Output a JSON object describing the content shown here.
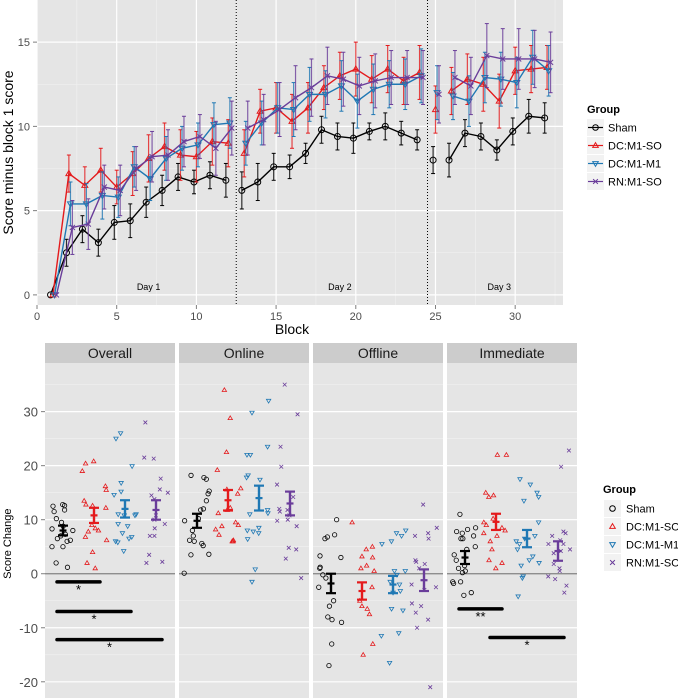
{
  "colors": {
    "Sham": "#000000",
    "DC:M1-SO": "#e41a1c",
    "DC:M1-M1": "#1f78b4",
    "RN:M1-SO": "#6a3d9a",
    "panel": "#e5e5e5",
    "strip": "#cccccc",
    "grid": "#ffffff"
  },
  "chart_data": [
    {
      "type": "line",
      "title": "",
      "xlabel": "Block",
      "ylabel": "Score minus block 1 score",
      "xlim": [
        0,
        33
      ],
      "ylim": [
        -0.6,
        17.5
      ],
      "xticks": [
        0,
        5,
        10,
        15,
        20,
        25,
        30
      ],
      "yticks": [
        0,
        5,
        10,
        15
      ],
      "grid": true,
      "legend": {
        "title": "Group",
        "position": "right",
        "entries": [
          "Sham",
          "DC:M1-SO",
          "DC:M1-M1",
          "RN:M1-SO"
        ]
      },
      "day_separators": [
        12.5,
        24.5
      ],
      "annotations": [
        {
          "text": "Day 1",
          "x": 7
        },
        {
          "text": "Day 2",
          "x": 19
        },
        {
          "text": "Day 3",
          "x": 29
        }
      ],
      "series": [
        {
          "name": "Sham",
          "marker": "circle",
          "x": [
            1,
            2,
            3,
            4,
            5,
            6,
            7,
            8,
            9,
            10,
            11,
            12,
            13,
            14,
            15,
            16,
            17,
            18,
            19,
            20,
            21,
            22,
            23,
            24,
            25,
            26,
            27,
            28,
            29,
            30,
            31,
            32
          ],
          "y": [
            0,
            2.5,
            3.9,
            3.1,
            4.3,
            4.4,
            5.5,
            6.2,
            7.0,
            6.7,
            7.1,
            6.8,
            6.2,
            6.7,
            7.6,
            7.6,
            8.4,
            9.8,
            9.4,
            9.3,
            9.7,
            10.0,
            9.6,
            9.2,
            8.0,
            8.0,
            9.6,
            9.4,
            8.6,
            9.7,
            10.6,
            10.5
          ],
          "err": [
            0,
            0.8,
            0.8,
            0.8,
            1.0,
            1.0,
            0.9,
            0.9,
            0.8,
            0.7,
            0.8,
            1.0,
            1.1,
            1.1,
            0.8,
            0.7,
            0.6,
            0.8,
            0.8,
            0.9,
            0.5,
            0.8,
            0.7,
            0.6,
            0.8,
            1.0,
            0.8,
            0.8,
            0.6,
            0.8,
            1.0,
            0.9
          ],
          "breaks_after": [
            12,
            24,
            25
          ]
        },
        {
          "name": "DC:M1-SO",
          "marker": "triangle-up",
          "x": [
            1,
            2,
            3,
            4,
            5,
            6,
            7,
            8,
            9,
            10,
            11,
            12,
            13,
            14,
            15,
            16,
            17,
            18,
            19,
            20,
            21,
            22,
            23,
            24,
            25,
            26,
            27,
            28,
            29,
            30,
            31,
            32
          ],
          "y": [
            0,
            7.2,
            6.5,
            7.4,
            6.4,
            7.2,
            8.1,
            8.8,
            8.3,
            8.2,
            9.1,
            9.0,
            8.4,
            10.9,
            11.1,
            10.3,
            11.1,
            12.3,
            13.0,
            13.4,
            12.8,
            13.4,
            12.7,
            13.2,
            11.0,
            12.1,
            12.8,
            12.5,
            11.5,
            13.3,
            13.4,
            13.5
          ],
          "err": [
            0,
            1.1,
            1.1,
            1.3,
            1.0,
            1.3,
            1.4,
            1.4,
            1.5,
            1.5,
            1.4,
            1.4,
            1.4,
            1.3,
            1.5,
            1.6,
            1.5,
            1.3,
            1.4,
            1.6,
            1.4,
            1.4,
            1.4,
            1.6,
            1.4,
            1.4,
            1.5,
            1.6,
            1.6,
            1.4,
            1.4,
            1.3
          ],
          "breaks_after": [
            12,
            24,
            25
          ]
        },
        {
          "name": "DC:M1-M1",
          "marker": "triangle-down",
          "x": [
            1,
            2,
            3,
            4,
            5,
            6,
            7,
            8,
            9,
            10,
            11,
            12,
            13,
            14,
            15,
            16,
            17,
            18,
            19,
            20,
            21,
            22,
            23,
            24,
            25,
            26,
            27,
            28,
            29,
            30,
            31,
            32
          ],
          "y": [
            0,
            5.4,
            5.4,
            5.9,
            5.8,
            7.6,
            6.9,
            8.1,
            8.7,
            8.9,
            10.1,
            10.2,
            9.0,
            10.2,
            11.1,
            11.0,
            11.9,
            11.9,
            12.4,
            11.5,
            12.2,
            12.5,
            12.5,
            13.0,
            12.0,
            11.8,
            11.5,
            12.9,
            12.8,
            12.6,
            14.1,
            13.3
          ],
          "err": [
            0,
            1.3,
            1.2,
            1.4,
            1.2,
            1.2,
            1.3,
            1.3,
            1.3,
            1.3,
            1.3,
            1.5,
            1.3,
            1.3,
            1.5,
            1.6,
            1.6,
            1.4,
            1.5,
            1.6,
            1.5,
            1.4,
            1.5,
            1.6,
            1.6,
            1.4,
            1.5,
            1.5,
            1.6,
            1.5,
            1.6,
            1.5
          ],
          "breaks_after": [
            12,
            24,
            25
          ]
        },
        {
          "name": "RN:M1-SO",
          "marker": "x",
          "x": [
            1,
            2,
            3,
            4,
            5,
            6,
            7,
            8,
            9,
            10,
            11,
            12,
            13,
            14,
            15,
            16,
            17,
            18,
            19,
            20,
            21,
            22,
            23,
            24,
            25,
            26,
            27,
            28,
            29,
            30,
            31,
            32
          ],
          "y": [
            0,
            4.0,
            4.2,
            6.4,
            6.2,
            7.5,
            8.2,
            8.3,
            9.1,
            9.4,
            8.7,
            9.9,
            9.9,
            10.4,
            11.0,
            11.7,
            12.3,
            13.0,
            12.8,
            12.4,
            12.7,
            12.9,
            12.9,
            12.9,
            11.9,
            12.9,
            12.4,
            14.2,
            14.0,
            14.0,
            14.0,
            13.8
          ],
          "err": [
            0,
            1.6,
            1.5,
            1.3,
            1.5,
            1.3,
            1.5,
            1.5,
            1.5,
            1.3,
            1.6,
            1.6,
            1.6,
            1.5,
            1.6,
            1.9,
            1.7,
            1.7,
            1.6,
            1.7,
            1.6,
            1.6,
            1.6,
            1.6,
            1.7,
            1.6,
            1.7,
            1.9,
            1.8,
            1.8,
            1.7,
            1.8
          ],
          "breaks_after": [
            12,
            24,
            25
          ]
        }
      ]
    },
    {
      "type": "scatter",
      "title": "",
      "xlabel": "",
      "ylabel": "Score Change",
      "ylim": [
        -23,
        39
      ],
      "yticks": [
        -20,
        -10,
        0,
        10,
        20,
        30
      ],
      "grid": true,
      "reference_line": 0,
      "legend": {
        "title": "Group",
        "position": "right",
        "entries": [
          "Sham",
          "DC:M1-SO",
          "DC:M1-M1",
          "RN:M1-SO"
        ]
      },
      "facets": [
        {
          "label": "Overall",
          "groups": [
            {
              "name": "Sham",
              "mean": 8.0,
              "se": 0.9,
              "points": [
                12.8,
                12.6,
                12.5,
                10.2,
                9.5,
                8.8,
                8.3,
                8.0,
                7.3,
                7.0,
                6.5,
                6.2,
                6.0,
                5.0,
                5.0,
                2.0,
                1.2,
                11.5,
                11.8
              ]
            },
            {
              "name": "DC:M1-SO",
              "mean": 10.8,
              "se": 1.4,
              "points": [
                20.8,
                20.4,
                19.0,
                16.2,
                15.5,
                13.5,
                12.6,
                12.2,
                12.8,
                9.0,
                8.4,
                8.0,
                7.8,
                6.8,
                6.2,
                4.0,
                2.0,
                1.0
              ]
            },
            {
              "name": "DC:M1-M1",
              "mean": 12.0,
              "se": 1.6,
              "points": [
                26.0,
                25.0,
                19.9,
                16.8,
                15.2,
                14.6,
                11.0,
                11.0,
                10.8,
                10.8,
                9.2,
                8.8,
                7.5,
                6.8,
                6.5,
                6.0,
                5.8,
                4.2
              ]
            },
            {
              "name": "RN:M1-SO",
              "mean": 11.8,
              "se": 1.8,
              "points": [
                28.0,
                21.5,
                21.3,
                17.6,
                15.6,
                15.0,
                14.5,
                13.8,
                10.8,
                10.0,
                9.2,
                8.4,
                7.0,
                7.0,
                3.5,
                2.2,
                2.0
              ]
            }
          ]
        },
        {
          "label": "Online",
          "groups": [
            {
              "name": "Sham",
              "mean": 9.8,
              "se": 1.3,
              "points": [
                18.2,
                17.8,
                17.5,
                15.3,
                14.8,
                13.5,
                12.0,
                11.8,
                10.2,
                9.8,
                8.0,
                7.0,
                6.2,
                6.0,
                5.6,
                5.2,
                3.5,
                3.6,
                0.1
              ]
            },
            {
              "name": "DC:M1-SO",
              "mean": 13.6,
              "se": 1.9,
              "points": [
                34.0,
                28.8,
                22.5,
                19.2,
                15.8,
                15.6,
                14.8,
                12.2,
                11.8,
                11.2,
                9.5,
                9.0,
                8.8,
                8.2,
                7.2,
                6.2,
                6.0,
                6.0
              ]
            },
            {
              "name": "DC:M1-M1",
              "mean": 14.0,
              "se": 2.3,
              "points": [
                32.0,
                29.8,
                23.5,
                22.0,
                22.0,
                18.2,
                17.8,
                17.4,
                11.8,
                11.2,
                11.0,
                8.5,
                8.0,
                7.8,
                7.5,
                6.4,
                0.8,
                -1.5
              ]
            },
            {
              "name": "RN:M1-SO",
              "mean": 13.0,
              "se": 2.2,
              "points": [
                35.0,
                29.5,
                23.5,
                19.8,
                16.5,
                14.2,
                12.0,
                11.8,
                11.5,
                10.8,
                10.0,
                9.8,
                8.8,
                4.8,
                4.5,
                2.8,
                -0.8
              ]
            }
          ]
        },
        {
          "label": "Offline",
          "groups": [
            {
              "name": "Sham",
              "mean": -1.8,
              "se": 1.8,
              "points": [
                10.0,
                7.2,
                6.5,
                6.8,
                3.3,
                3.0,
                1.2,
                1.0,
                -0.2,
                -0.8,
                -2.5,
                -5.0,
                -6.0,
                -8.0,
                -8.5,
                -9.0,
                -13.0,
                -17.0
              ]
            },
            {
              "name": "DC:M1-SO",
              "mean": -3.2,
              "se": 1.6,
              "points": [
                9.5,
                5.0,
                4.5,
                3.2,
                3.0,
                1.5,
                1.0,
                0.5,
                -2.5,
                -5.0,
                -6.0,
                -6.5,
                -7.5,
                -13.0,
                -15.0
              ]
            },
            {
              "name": "DC:M1-M1",
              "mean": -2.0,
              "se": 1.6,
              "points": [
                8.0,
                7.5,
                7.0,
                6.0,
                5.5,
                0.5,
                0.5,
                -0.2,
                -1.5,
                -2.0,
                -3.2,
                -3.5,
                -6.5,
                -6.8,
                -11.0,
                -11.5,
                -16.5
              ]
            },
            {
              "name": "RN:M1-SO",
              "mean": -1.2,
              "se": 2.0,
              "points": [
                12.8,
                8.5,
                7.5,
                7.0,
                6.5,
                2.5,
                2.2,
                1.8,
                1.0,
                -2.0,
                -2.5,
                -3.0,
                -5.5,
                -6.0,
                -7.2,
                -8.5,
                -10.0,
                -21.0
              ]
            }
          ]
        },
        {
          "label": "Immediate",
          "groups": [
            {
              "name": "Sham",
              "mean": 3.0,
              "se": 1.2,
              "points": [
                11.0,
                8.5,
                8.2,
                7.5,
                7.0,
                7.8,
                6.5,
                6.5,
                5.0,
                4.5,
                3.5,
                2.5,
                1.5,
                1.0,
                0.2,
                0.5,
                -1.5,
                -1.5,
                -1.8,
                -3.5,
                -4.0
              ]
            },
            {
              "name": "DC:M1-SO",
              "mean": 9.6,
              "se": 1.5,
              "points": [
                22.0,
                22.0,
                15.0,
                14.5,
                14.2,
                10.2,
                9.5,
                9.0,
                8.5,
                8.0,
                7.5,
                7.0,
                6.0,
                4.5,
                2.5,
                2.0,
                1.0
              ]
            },
            {
              "name": "DC:M1-M1",
              "mean": 6.5,
              "se": 1.6,
              "points": [
                17.5,
                16.5,
                15.0,
                14.2,
                13.5,
                9.5,
                7.0,
                6.5,
                6.0,
                5.5,
                4.5,
                3.2,
                2.5,
                2.0,
                1.5,
                -0.5,
                -0.8,
                -4.2
              ]
            },
            {
              "name": "RN:M1-SO",
              "mean": 4.2,
              "se": 1.8,
              "points": [
                22.8,
                19.8,
                7.5,
                7.8,
                7.0,
                6.2,
                5.5,
                5.5,
                4.5,
                4.2,
                3.8,
                1.8,
                1.0,
                0.5,
                -0.5,
                -1.0,
                -2.2,
                -3.5
              ]
            }
          ]
        }
      ],
      "significance": [
        {
          "facet": "Overall",
          "from": "Sham",
          "to": "DC:M1-SO",
          "y": -1.5,
          "label": "*"
        },
        {
          "facet": "Overall",
          "from": "Sham",
          "to": "DC:M1-M1",
          "y": -7.0,
          "label": "*"
        },
        {
          "facet": "Overall",
          "from": "Sham",
          "to": "RN:M1-SO",
          "y": -12.2,
          "label": "*"
        },
        {
          "facet": "Immediate",
          "from": "Sham",
          "to": "DC:M1-SO",
          "y": -6.5,
          "label": "**"
        },
        {
          "facet": "Immediate",
          "from": "DC:M1-SO",
          "to": "RN:M1-SO",
          "y": -11.8,
          "label": "*"
        }
      ]
    }
  ]
}
